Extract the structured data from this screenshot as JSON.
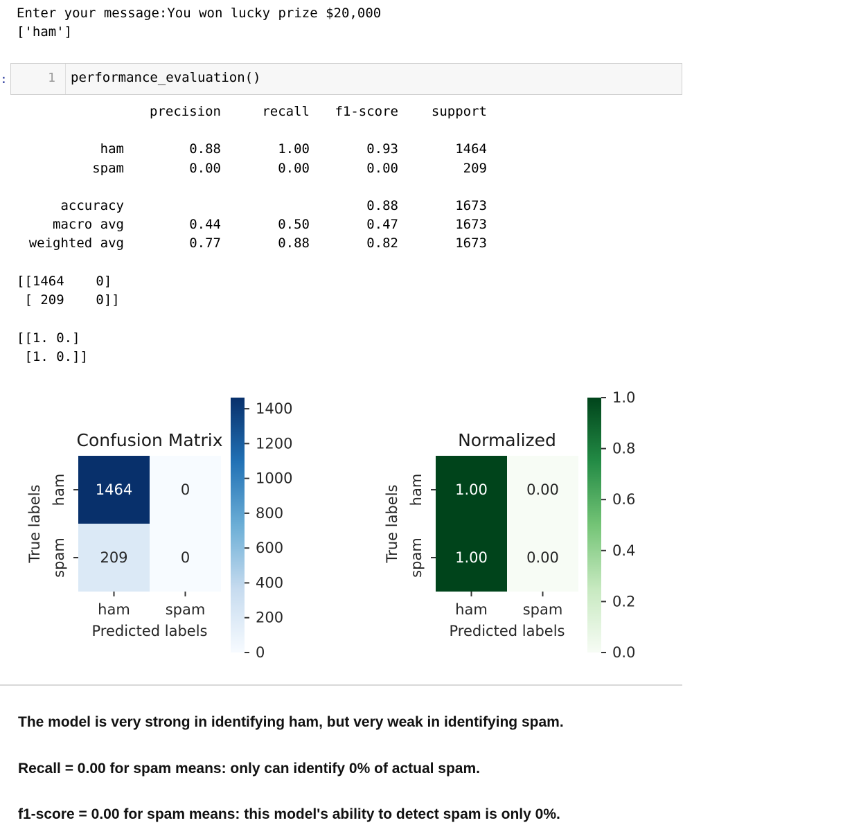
{
  "output_top": {
    "line1": "Enter your message:You won lucky prize $20,000",
    "line2": "['ham']"
  },
  "cell": {
    "prompt": ":",
    "line_number": "1",
    "code": "performance_evaluation()"
  },
  "report": {
    "headers": [
      "precision",
      "recall",
      "f1-score",
      "support"
    ],
    "rows": [
      {
        "label": "ham",
        "precision": "0.88",
        "recall": "1.00",
        "f1": "0.93",
        "support": "1464"
      },
      {
        "label": "spam",
        "precision": "0.00",
        "recall": "0.00",
        "f1": "0.00",
        "support": "209"
      },
      {
        "label": "accuracy",
        "precision": "",
        "recall": "",
        "f1": "0.88",
        "support": "1673"
      },
      {
        "label": "macro avg",
        "precision": "0.44",
        "recall": "0.50",
        "f1": "0.47",
        "support": "1673"
      },
      {
        "label": "weighted avg",
        "precision": "0.77",
        "recall": "0.88",
        "f1": "0.82",
        "support": "1673"
      }
    ]
  },
  "matrix_text": {
    "raw_line1": "[[1464    0]",
    "raw_line2": " [ 209    0]]",
    "norm_line1": "[[1. 0.]",
    "norm_line2": " [1. 0.]]"
  },
  "chart_data": [
    {
      "type": "heatmap",
      "title": "Confusion Matrix",
      "xlabel": "Predicted labels",
      "ylabel": "True labels",
      "x_categories": [
        "ham",
        "spam"
      ],
      "y_categories": [
        "ham",
        "spam"
      ],
      "values": [
        [
          1464,
          0
        ],
        [
          209,
          0
        ]
      ],
      "annotations": [
        [
          "1464",
          "0"
        ],
        [
          "209",
          "0"
        ]
      ],
      "colormap": "Blues",
      "colorbar": {
        "range": [
          0,
          1464
        ],
        "ticks": [
          "0",
          "200",
          "400",
          "600",
          "800",
          "1000",
          "1200",
          "1400"
        ]
      }
    },
    {
      "type": "heatmap",
      "title": "Normalized",
      "xlabel": "Predicted labels",
      "ylabel": "True labels",
      "x_categories": [
        "ham",
        "spam"
      ],
      "y_categories": [
        "ham",
        "spam"
      ],
      "values": [
        [
          1.0,
          0.0
        ],
        [
          1.0,
          0.0
        ]
      ],
      "annotations": [
        [
          "1.00",
          "0.00"
        ],
        [
          "1.00",
          "0.00"
        ]
      ],
      "colormap": "Greens",
      "colorbar": {
        "range": [
          0,
          1.0
        ],
        "ticks": [
          "0.0",
          "0.2",
          "0.4",
          "0.6",
          "0.8",
          "1.0"
        ]
      }
    }
  ],
  "markdown": {
    "line1": "The model is very strong in identifying ham, but very weak in identifying spam.",
    "line2": "Recall = 0.00 for spam means: only can identify 0% of actual spam.",
    "line3": "f1-score = 0.00 for spam means: this model's ability to detect spam is only 0%."
  }
}
